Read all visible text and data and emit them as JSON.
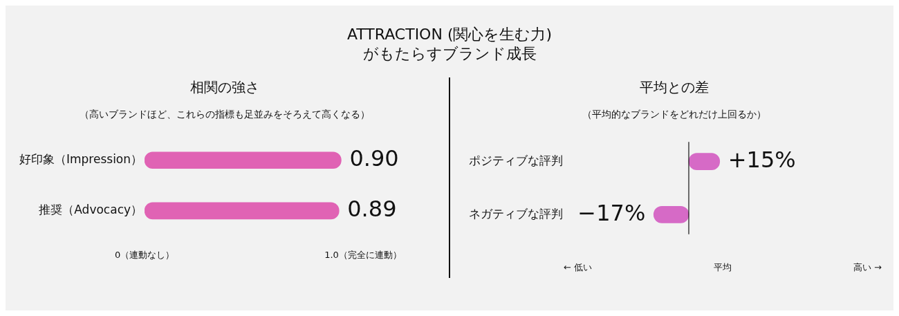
{
  "chart_data": [
    {
      "type": "other",
      "title": "ATTRACTION (関心を生む力)",
      "subtitle": "がもたらすブランド成長"
    },
    {
      "type": "bar",
      "orientation": "horizontal",
      "title": "相関の強さ",
      "subtitle": "（高いブランドほど、これらの指標も足並みをそろえて高くなる）",
      "categories": [
        "好印象（Impression）",
        "推奨（Advocacy）"
      ],
      "values": [
        0.9,
        0.89
      ],
      "value_labels": [
        "0.90",
        "0.89"
      ],
      "color": "#e063b4",
      "xlim": [
        0,
        1
      ],
      "xticks": [
        {
          "value": 0,
          "label": "0（連動なし）"
        },
        {
          "value": 1,
          "label": "1.0（完全に連動）"
        }
      ]
    },
    {
      "type": "bar",
      "orientation": "horizontal",
      "title": "平均との差",
      "subtitle": "（平均的なブランドをどれだけ上回るか）",
      "categories": [
        "ポジティブな評判",
        "ネガティブな評判"
      ],
      "values": [
        15,
        -17
      ],
      "value_labels": [
        "+15%",
        "−17%"
      ],
      "color": "#d66ac6",
      "annotations": [
        "← 低い",
        "平均",
        "高い →"
      ],
      "ref_lines": [
        {
          "axis": "x",
          "value": 0
        }
      ]
    }
  ]
}
